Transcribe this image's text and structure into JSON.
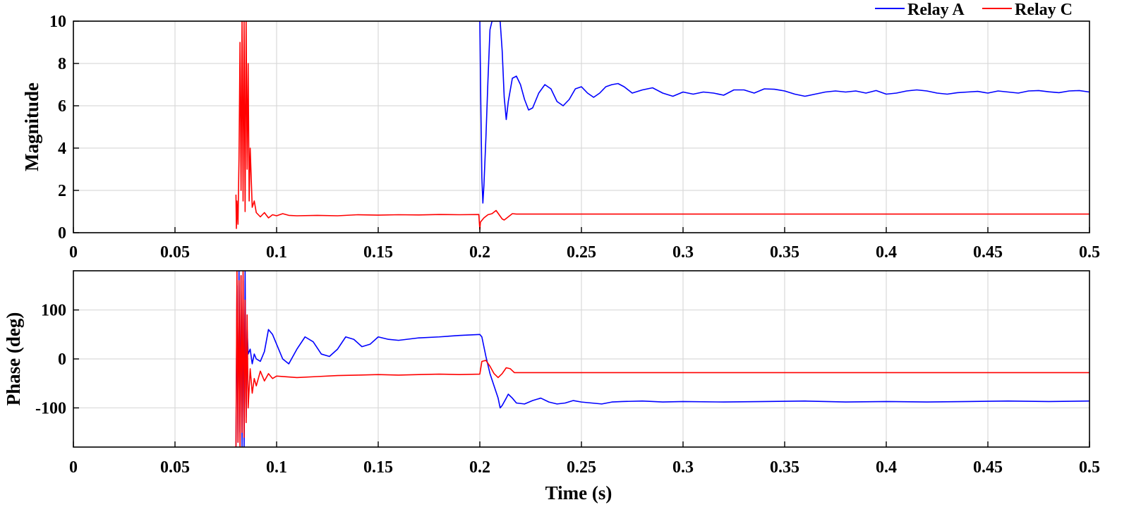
{
  "colors": {
    "relay_a": "#0000ff",
    "relay_c": "#ff0000",
    "grid": "#d9d9d9"
  },
  "chart_data": [
    {
      "type": "line",
      "id": "magnitude",
      "title": "",
      "xlabel": "",
      "ylabel": "Magnitude",
      "xlim": [
        0,
        0.5
      ],
      "ylim": [
        0,
        10
      ],
      "xticks": [
        0,
        0.05,
        0.1,
        0.15,
        0.2,
        0.25,
        0.3,
        0.35,
        0.4,
        0.45,
        0.5
      ],
      "xtick_labels": [
        "0",
        "0.05",
        "0.1",
        "0.15",
        "0.2",
        "0.25",
        "0.3",
        "0.35",
        "0.4",
        "0.45",
        "0.5"
      ],
      "yticks": [
        0,
        2,
        4,
        6,
        8,
        10
      ],
      "ytick_labels": [
        "0",
        "2",
        "4",
        "6",
        "8",
        "10"
      ],
      "grid": true,
      "legend": {
        "position": "top-right",
        "entries": [
          "Relay A",
          "Relay C"
        ]
      },
      "series": [
        {
          "name": "Relay A",
          "x": [
            0.2,
            0.2005,
            0.201,
            0.2015,
            0.202,
            0.203,
            0.204,
            0.205,
            0.206,
            0.207,
            0.208,
            0.209,
            0.21,
            0.211,
            0.212,
            0.213,
            0.214,
            0.216,
            0.218,
            0.22,
            0.222,
            0.224,
            0.226,
            0.229,
            0.232,
            0.235,
            0.238,
            0.241,
            0.244,
            0.247,
            0.25,
            0.253,
            0.256,
            0.259,
            0.262,
            0.265,
            0.268,
            0.271,
            0.275,
            0.28,
            0.285,
            0.29,
            0.295,
            0.3,
            0.305,
            0.31,
            0.315,
            0.32,
            0.325,
            0.33,
            0.335,
            0.34,
            0.345,
            0.35,
            0.355,
            0.36,
            0.365,
            0.37,
            0.375,
            0.38,
            0.385,
            0.39,
            0.395,
            0.4,
            0.405,
            0.41,
            0.415,
            0.42,
            0.425,
            0.43,
            0.435,
            0.44,
            0.445,
            0.45,
            0.455,
            0.46,
            0.465,
            0.47,
            0.475,
            0.48,
            0.485,
            0.49,
            0.495,
            0.5
          ],
          "y": [
            10,
            6,
            2.6,
            1.4,
            2.2,
            4.5,
            7.2,
            9.6,
            10,
            10,
            10,
            10,
            10,
            8.6,
            6.4,
            5.35,
            6.2,
            7.3,
            7.4,
            7.0,
            6.3,
            5.8,
            5.9,
            6.6,
            7.0,
            6.8,
            6.2,
            6.0,
            6.3,
            6.8,
            6.9,
            6.6,
            6.4,
            6.6,
            6.9,
            7.0,
            7.05,
            6.9,
            6.6,
            6.75,
            6.85,
            6.6,
            6.45,
            6.65,
            6.55,
            6.65,
            6.6,
            6.5,
            6.75,
            6.75,
            6.6,
            6.8,
            6.78,
            6.7,
            6.55,
            6.45,
            6.55,
            6.65,
            6.7,
            6.65,
            6.7,
            6.6,
            6.72,
            6.55,
            6.6,
            6.7,
            6.75,
            6.7,
            6.6,
            6.55,
            6.62,
            6.65,
            6.68,
            6.6,
            6.7,
            6.65,
            6.6,
            6.7,
            6.72,
            6.66,
            6.62,
            6.7,
            6.72,
            6.65
          ]
        },
        {
          "name": "Relay C",
          "x": [
            0.08,
            0.0802,
            0.0805,
            0.081,
            0.0815,
            0.082,
            0.0825,
            0.083,
            0.0835,
            0.084,
            0.0845,
            0.085,
            0.0855,
            0.086,
            0.0865,
            0.087,
            0.088,
            0.089,
            0.09,
            0.092,
            0.094,
            0.096,
            0.098,
            0.1,
            0.103,
            0.106,
            0.11,
            0.12,
            0.13,
            0.14,
            0.15,
            0.16,
            0.17,
            0.18,
            0.19,
            0.1995,
            0.2,
            0.2003,
            0.202,
            0.204,
            0.206,
            0.208,
            0.2095,
            0.211,
            0.212,
            0.214,
            0.216,
            0.218,
            0.22,
            0.25,
            0.3,
            0.35,
            0.4,
            0.45,
            0.5
          ],
          "y": [
            1.8,
            0.2,
            1.5,
            0.4,
            3.5,
            9.0,
            2.0,
            10.0,
            1.5,
            10.0,
            1.0,
            10.0,
            3.0,
            8.0,
            1.5,
            4.0,
            1.2,
            1.5,
            0.95,
            0.75,
            0.95,
            0.7,
            0.85,
            0.8,
            0.9,
            0.82,
            0.8,
            0.82,
            0.8,
            0.85,
            0.83,
            0.85,
            0.84,
            0.86,
            0.85,
            0.86,
            0.15,
            0.5,
            0.7,
            0.85,
            0.9,
            1.05,
            0.85,
            0.65,
            0.6,
            0.75,
            0.9,
            0.88,
            0.88,
            0.88,
            0.88,
            0.88,
            0.88,
            0.88,
            0.88
          ]
        }
      ]
    },
    {
      "type": "line",
      "id": "phase",
      "title": "",
      "xlabel": "Time (s)",
      "ylabel": "Phase (deg)",
      "xlim": [
        0,
        0.5
      ],
      "ylim": [
        -180,
        180
      ],
      "xticks": [
        0,
        0.05,
        0.1,
        0.15,
        0.2,
        0.25,
        0.3,
        0.35,
        0.4,
        0.45,
        0.5
      ],
      "xtick_labels": [
        "0",
        "0.05",
        "0.1",
        "0.15",
        "0.2",
        "0.25",
        "0.3",
        "0.35",
        "0.4",
        "0.45",
        "0.5"
      ],
      "yticks": [
        -100,
        0,
        100
      ],
      "ytick_labels": [
        "-100",
        "0",
        "100"
      ],
      "grid": true,
      "series": [
        {
          "name": "Relay A",
          "x": [
            0.08,
            0.0805,
            0.081,
            0.0815,
            0.082,
            0.0825,
            0.083,
            0.0835,
            0.084,
            0.0845,
            0.085,
            0.0855,
            0.086,
            0.087,
            0.088,
            0.089,
            0.09,
            0.092,
            0.094,
            0.096,
            0.098,
            0.1,
            0.103,
            0.106,
            0.11,
            0.114,
            0.118,
            0.122,
            0.126,
            0.13,
            0.134,
            0.138,
            0.142,
            0.146,
            0.15,
            0.155,
            0.16,
            0.17,
            0.18,
            0.19,
            0.2,
            0.201,
            0.203,
            0.205,
            0.207,
            0.209,
            0.21,
            0.211,
            0.213,
            0.214,
            0.216,
            0.218,
            0.222,
            0.226,
            0.23,
            0.234,
            0.238,
            0.242,
            0.246,
            0.25,
            0.255,
            0.26,
            0.265,
            0.27,
            0.28,
            0.29,
            0.3,
            0.32,
            0.34,
            0.36,
            0.38,
            0.4,
            0.42,
            0.44,
            0.46,
            0.48,
            0.5
          ],
          "y": [
            -180,
            150,
            -170,
            180,
            -150,
            170,
            -180,
            160,
            -180,
            180,
            -120,
            60,
            10,
            20,
            -10,
            10,
            0,
            -5,
            15,
            60,
            50,
            30,
            0,
            -10,
            20,
            45,
            35,
            10,
            5,
            20,
            45,
            40,
            25,
            30,
            45,
            40,
            38,
            43,
            45,
            48,
            50,
            45,
            5,
            -30,
            -55,
            -80,
            -100,
            -95,
            -80,
            -72,
            -80,
            -90,
            -92,
            -85,
            -80,
            -88,
            -92,
            -90,
            -85,
            -88,
            -90,
            -92,
            -88,
            -87,
            -86,
            -88,
            -87,
            -88,
            -87,
            -86,
            -88,
            -87,
            -88,
            -87,
            -86,
            -87,
            -86
          ]
        },
        {
          "name": "Relay C",
          "x": [
            0.08,
            0.0805,
            0.081,
            0.0815,
            0.082,
            0.0825,
            0.083,
            0.0835,
            0.084,
            0.0845,
            0.085,
            0.0855,
            0.086,
            0.087,
            0.088,
            0.089,
            0.09,
            0.092,
            0.094,
            0.096,
            0.098,
            0.1,
            0.11,
            0.12,
            0.13,
            0.14,
            0.15,
            0.16,
            0.17,
            0.18,
            0.19,
            0.2,
            0.201,
            0.203,
            0.205,
            0.207,
            0.209,
            0.211,
            0.213,
            0.215,
            0.217,
            0.22,
            0.25,
            0.3,
            0.35,
            0.4,
            0.45,
            0.5
          ],
          "y": [
            -180,
            180,
            -170,
            160,
            -180,
            170,
            -150,
            180,
            -160,
            120,
            -130,
            90,
            -100,
            -20,
            -70,
            -40,
            -55,
            -25,
            -45,
            -30,
            -40,
            -35,
            -38,
            -36,
            -34,
            -33,
            -32,
            -33,
            -32,
            -31,
            -32,
            -31,
            -5,
            -3,
            -15,
            -30,
            -38,
            -30,
            -18,
            -20,
            -28,
            -28,
            -28,
            -28,
            -28,
            -28,
            -28,
            -28
          ]
        }
      ]
    }
  ]
}
